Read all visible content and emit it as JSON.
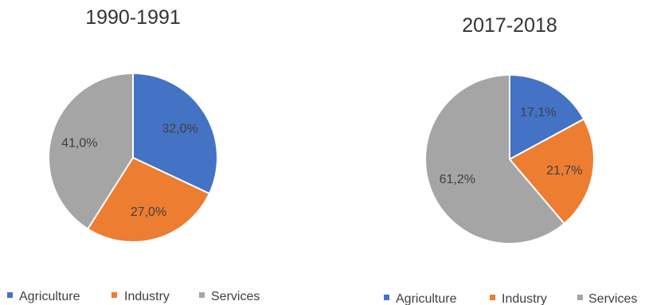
{
  "colors": {
    "Agriculture": "#4472c4",
    "Industry": "#ed7d31",
    "Services": "#a5a5a5",
    "label_text": "#404040",
    "title_text": "#333333"
  },
  "chart_data": [
    {
      "type": "pie",
      "title": "1990-1991",
      "start_angle_deg": 0,
      "direction": "clockwise",
      "legend_position": "bottom",
      "slices": [
        {
          "label": "Agriculture",
          "value": 32.0,
          "display": "32,0%"
        },
        {
          "label": "Industry",
          "value": 27.0,
          "display": "27,0%"
        },
        {
          "label": "Services",
          "value": 41.0,
          "display": "41,0%"
        }
      ]
    },
    {
      "type": "pie",
      "title": "2017-2018",
      "start_angle_deg": 0,
      "direction": "clockwise",
      "legend_position": "bottom",
      "slices": [
        {
          "label": "Agriculture",
          "value": 17.1,
          "display": "17,1%"
        },
        {
          "label": "Industry",
          "value": 21.7,
          "display": "21,7%"
        },
        {
          "label": "Services",
          "value": 61.2,
          "display": "61,2%"
        }
      ]
    }
  ]
}
